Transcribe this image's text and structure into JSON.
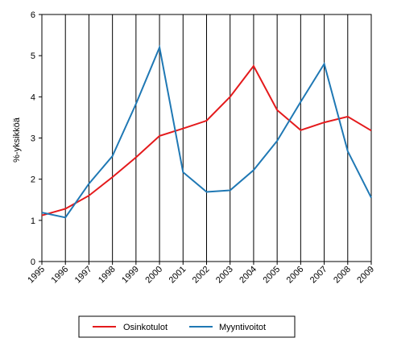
{
  "chart_data": {
    "type": "line",
    "title": "",
    "xlabel": "",
    "ylabel": "%-yksikköä",
    "ylim": [
      0,
      6
    ],
    "yticks": [
      "0",
      "1",
      "2",
      "3",
      "4",
      "5",
      "6"
    ],
    "categories": [
      "1995",
      "1996",
      "1997",
      "1998",
      "1999",
      "2000",
      "2001",
      "2002",
      "2003",
      "2004",
      "2005",
      "2006",
      "2007",
      "2008",
      "2009"
    ],
    "grid": "vertical",
    "legend_position": "bottom",
    "series": [
      {
        "name": "Osinkotulot",
        "color": "#e41a1c",
        "values": [
          1.12,
          1.28,
          1.6,
          2.05,
          2.53,
          3.05,
          3.23,
          3.42,
          4.0,
          4.75,
          3.68,
          3.19,
          3.38,
          3.52,
          3.18
        ]
      },
      {
        "name": "Myyntivoitot",
        "color": "#1f78b4",
        "values": [
          1.19,
          1.07,
          1.89,
          2.56,
          3.83,
          5.2,
          2.17,
          1.69,
          1.73,
          2.22,
          2.93,
          3.88,
          4.8,
          2.68,
          1.55
        ]
      }
    ]
  }
}
